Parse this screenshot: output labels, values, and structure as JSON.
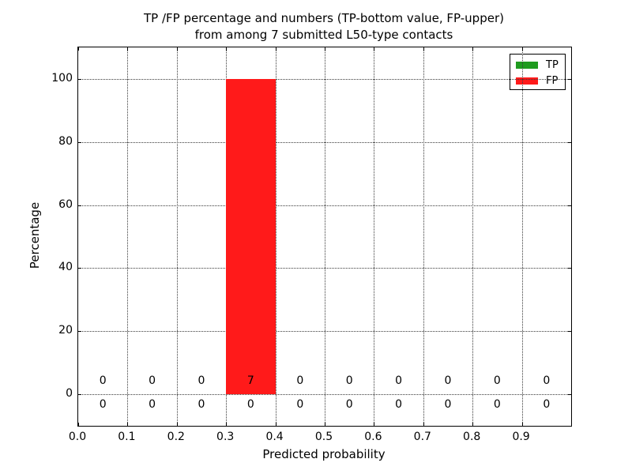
{
  "chart_data": {
    "type": "bar",
    "title_lines": [
      "TP /FP percentage and numbers (TP-bottom value, FP-upper)",
      "from among 7 submitted L50-type contacts"
    ],
    "xlabel": "Predicted probability",
    "ylabel": "Percentage",
    "xlim": [
      0.0,
      1.0
    ],
    "ylim": [
      -10,
      110
    ],
    "x_tick_labels": [
      "0.0",
      "0.1",
      "0.2",
      "0.3",
      "0.4",
      "0.5",
      "0.6",
      "0.7",
      "0.8",
      "0.9"
    ],
    "y_tick_values": [
      0,
      20,
      40,
      60,
      80,
      100
    ],
    "bin_width": 0.1,
    "bin_centers": [
      0.05,
      0.15,
      0.25,
      0.35,
      0.45,
      0.55,
      0.65,
      0.75,
      0.85,
      0.95
    ],
    "total_contacts": 7,
    "grid": {
      "style": "dotted",
      "color": "#000000"
    },
    "background": "#ffffff",
    "series": [
      {
        "name": "TP",
        "color": "#1f9b1f",
        "percent": [
          0,
          0,
          0,
          0,
          0,
          0,
          0,
          0,
          0,
          0
        ],
        "counts": [
          0,
          0,
          0,
          0,
          0,
          0,
          0,
          0,
          0,
          0
        ],
        "count_row": "bottom"
      },
      {
        "name": "FP",
        "color": "#ff1a1a",
        "percent": [
          0,
          0,
          0,
          100,
          0,
          0,
          0,
          0,
          0,
          0
        ],
        "counts": [
          0,
          0,
          0,
          7,
          0,
          0,
          0,
          0,
          0,
          0
        ],
        "count_row": "top"
      }
    ],
    "legend": {
      "position": "upper right",
      "entries": [
        {
          "label": "TP",
          "color": "#1f9b1f"
        },
        {
          "label": "FP",
          "color": "#ff1a1a"
        }
      ]
    }
  }
}
